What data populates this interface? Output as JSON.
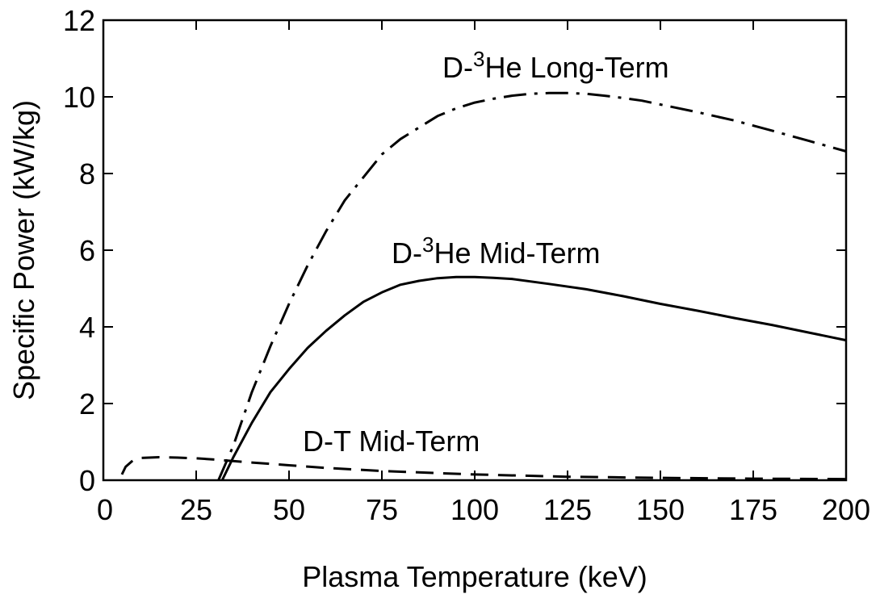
{
  "chart_data": {
    "type": "line",
    "xlabel": "Plasma Temperature (keV)",
    "ylabel": "Specific Power (kW/kg)",
    "xlim": [
      0,
      200
    ],
    "ylim": [
      0,
      12
    ],
    "x_ticks": [
      0,
      25,
      50,
      75,
      100,
      125,
      150,
      175,
      200
    ],
    "y_ticks": [
      0,
      2,
      4,
      6,
      8,
      10,
      12
    ],
    "grid": false,
    "legend": "none",
    "series": [
      {
        "label_prefix": "D-",
        "label_sup": "3",
        "label_suffix": "He Long-Term",
        "style": "dash-dot",
        "color": "#000000",
        "x": [
          31,
          35,
          40,
          45,
          50,
          55,
          60,
          65,
          70,
          75,
          80,
          85,
          90,
          95,
          100,
          105,
          110,
          115,
          120,
          125,
          130,
          135,
          140,
          145,
          150,
          160,
          170,
          180,
          190,
          200
        ],
        "y": [
          0,
          0.9,
          2.3,
          3.5,
          4.6,
          5.6,
          6.5,
          7.3,
          7.9,
          8.5,
          8.9,
          9.2,
          9.5,
          9.7,
          9.85,
          9.95,
          10.03,
          10.08,
          10.1,
          10.1,
          10.08,
          10.03,
          9.97,
          9.9,
          9.8,
          9.6,
          9.38,
          9.12,
          8.85,
          8.58
        ]
      },
      {
        "label_prefix": "D-",
        "label_sup": "3",
        "label_suffix": "He Mid-Term",
        "style": "solid",
        "color": "#000000",
        "x": [
          32,
          35,
          40,
          45,
          50,
          55,
          60,
          65,
          70,
          75,
          80,
          85,
          90,
          95,
          100,
          105,
          110,
          120,
          130,
          140,
          150,
          160,
          170,
          180,
          190,
          200
        ],
        "y": [
          0,
          0.6,
          1.5,
          2.3,
          2.9,
          3.45,
          3.9,
          4.3,
          4.65,
          4.9,
          5.1,
          5.2,
          5.27,
          5.3,
          5.3,
          5.28,
          5.25,
          5.12,
          4.98,
          4.8,
          4.6,
          4.42,
          4.23,
          4.05,
          3.85,
          3.65
        ]
      },
      {
        "label_prefix": "D-T Mid-Term",
        "label_sup": "",
        "label_suffix": "",
        "style": "dashed",
        "color": "#000000",
        "x": [
          5,
          6,
          8,
          10,
          15,
          20,
          25,
          30,
          40,
          50,
          60,
          75,
          100,
          125,
          150,
          175,
          200
        ],
        "y": [
          0.15,
          0.35,
          0.52,
          0.58,
          0.6,
          0.59,
          0.57,
          0.54,
          0.46,
          0.39,
          0.32,
          0.24,
          0.15,
          0.09,
          0.06,
          0.04,
          0.03
        ]
      }
    ]
  }
}
